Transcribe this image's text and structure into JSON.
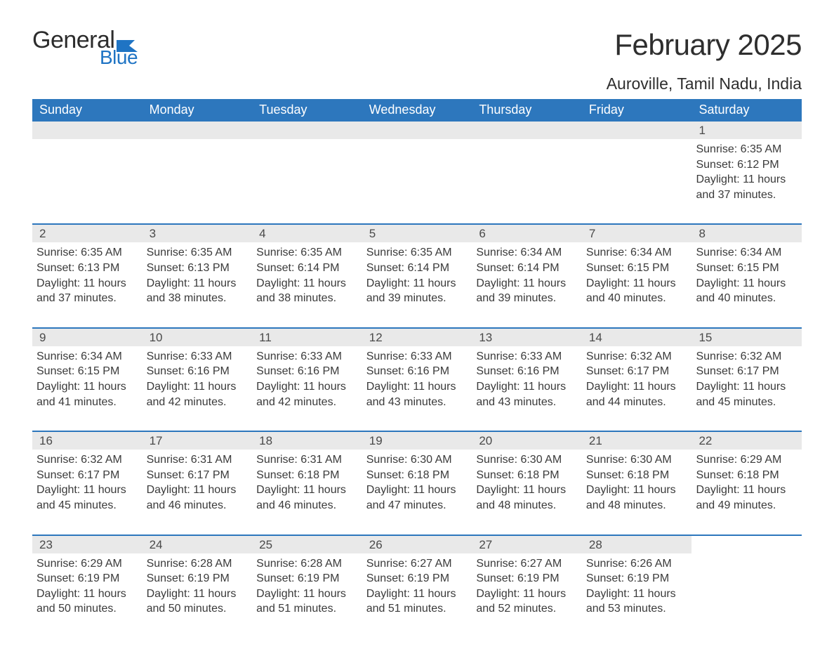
{
  "logo": {
    "text_general": "General",
    "text_blue": "Blue",
    "flag_color": "#1f74c4"
  },
  "title": "February 2025",
  "location": "Auroville, Tamil Nadu, India",
  "colors": {
    "header_bg": "#2d77bd",
    "header_text": "#ffffff",
    "daynum_band_bg": "#e9e9e9",
    "week_divider": "#2d77bd",
    "body_text": "#3a3a3a",
    "page_bg": "#ffffff"
  },
  "days_of_week": [
    "Sunday",
    "Monday",
    "Tuesday",
    "Wednesday",
    "Thursday",
    "Friday",
    "Saturday"
  ],
  "weeks": [
    [
      {
        "empty": true
      },
      {
        "empty": true
      },
      {
        "empty": true
      },
      {
        "empty": true
      },
      {
        "empty": true
      },
      {
        "empty": true
      },
      {
        "day": "1",
        "sunrise": "Sunrise: 6:35 AM",
        "sunset": "Sunset: 6:12 PM",
        "daylight": "Daylight: 11 hours and 37 minutes."
      }
    ],
    [
      {
        "day": "2",
        "sunrise": "Sunrise: 6:35 AM",
        "sunset": "Sunset: 6:13 PM",
        "daylight": "Daylight: 11 hours and 37 minutes."
      },
      {
        "day": "3",
        "sunrise": "Sunrise: 6:35 AM",
        "sunset": "Sunset: 6:13 PM",
        "daylight": "Daylight: 11 hours and 38 minutes."
      },
      {
        "day": "4",
        "sunrise": "Sunrise: 6:35 AM",
        "sunset": "Sunset: 6:14 PM",
        "daylight": "Daylight: 11 hours and 38 minutes."
      },
      {
        "day": "5",
        "sunrise": "Sunrise: 6:35 AM",
        "sunset": "Sunset: 6:14 PM",
        "daylight": "Daylight: 11 hours and 39 minutes."
      },
      {
        "day": "6",
        "sunrise": "Sunrise: 6:34 AM",
        "sunset": "Sunset: 6:14 PM",
        "daylight": "Daylight: 11 hours and 39 minutes."
      },
      {
        "day": "7",
        "sunrise": "Sunrise: 6:34 AM",
        "sunset": "Sunset: 6:15 PM",
        "daylight": "Daylight: 11 hours and 40 minutes."
      },
      {
        "day": "8",
        "sunrise": "Sunrise: 6:34 AM",
        "sunset": "Sunset: 6:15 PM",
        "daylight": "Daylight: 11 hours and 40 minutes."
      }
    ],
    [
      {
        "day": "9",
        "sunrise": "Sunrise: 6:34 AM",
        "sunset": "Sunset: 6:15 PM",
        "daylight": "Daylight: 11 hours and 41 minutes."
      },
      {
        "day": "10",
        "sunrise": "Sunrise: 6:33 AM",
        "sunset": "Sunset: 6:16 PM",
        "daylight": "Daylight: 11 hours and 42 minutes."
      },
      {
        "day": "11",
        "sunrise": "Sunrise: 6:33 AM",
        "sunset": "Sunset: 6:16 PM",
        "daylight": "Daylight: 11 hours and 42 minutes."
      },
      {
        "day": "12",
        "sunrise": "Sunrise: 6:33 AM",
        "sunset": "Sunset: 6:16 PM",
        "daylight": "Daylight: 11 hours and 43 minutes."
      },
      {
        "day": "13",
        "sunrise": "Sunrise: 6:33 AM",
        "sunset": "Sunset: 6:16 PM",
        "daylight": "Daylight: 11 hours and 43 minutes."
      },
      {
        "day": "14",
        "sunrise": "Sunrise: 6:32 AM",
        "sunset": "Sunset: 6:17 PM",
        "daylight": "Daylight: 11 hours and 44 minutes."
      },
      {
        "day": "15",
        "sunrise": "Sunrise: 6:32 AM",
        "sunset": "Sunset: 6:17 PM",
        "daylight": "Daylight: 11 hours and 45 minutes."
      }
    ],
    [
      {
        "day": "16",
        "sunrise": "Sunrise: 6:32 AM",
        "sunset": "Sunset: 6:17 PM",
        "daylight": "Daylight: 11 hours and 45 minutes."
      },
      {
        "day": "17",
        "sunrise": "Sunrise: 6:31 AM",
        "sunset": "Sunset: 6:17 PM",
        "daylight": "Daylight: 11 hours and 46 minutes."
      },
      {
        "day": "18",
        "sunrise": "Sunrise: 6:31 AM",
        "sunset": "Sunset: 6:18 PM",
        "daylight": "Daylight: 11 hours and 46 minutes."
      },
      {
        "day": "19",
        "sunrise": "Sunrise: 6:30 AM",
        "sunset": "Sunset: 6:18 PM",
        "daylight": "Daylight: 11 hours and 47 minutes."
      },
      {
        "day": "20",
        "sunrise": "Sunrise: 6:30 AM",
        "sunset": "Sunset: 6:18 PM",
        "daylight": "Daylight: 11 hours and 48 minutes."
      },
      {
        "day": "21",
        "sunrise": "Sunrise: 6:30 AM",
        "sunset": "Sunset: 6:18 PM",
        "daylight": "Daylight: 11 hours and 48 minutes."
      },
      {
        "day": "22",
        "sunrise": "Sunrise: 6:29 AM",
        "sunset": "Sunset: 6:18 PM",
        "daylight": "Daylight: 11 hours and 49 minutes."
      }
    ],
    [
      {
        "day": "23",
        "sunrise": "Sunrise: 6:29 AM",
        "sunset": "Sunset: 6:19 PM",
        "daylight": "Daylight: 11 hours and 50 minutes."
      },
      {
        "day": "24",
        "sunrise": "Sunrise: 6:28 AM",
        "sunset": "Sunset: 6:19 PM",
        "daylight": "Daylight: 11 hours and 50 minutes."
      },
      {
        "day": "25",
        "sunrise": "Sunrise: 6:28 AM",
        "sunset": "Sunset: 6:19 PM",
        "daylight": "Daylight: 11 hours and 51 minutes."
      },
      {
        "day": "26",
        "sunrise": "Sunrise: 6:27 AM",
        "sunset": "Sunset: 6:19 PM",
        "daylight": "Daylight: 11 hours and 51 minutes."
      },
      {
        "day": "27",
        "sunrise": "Sunrise: 6:27 AM",
        "sunset": "Sunset: 6:19 PM",
        "daylight": "Daylight: 11 hours and 52 minutes."
      },
      {
        "day": "28",
        "sunrise": "Sunrise: 6:26 AM",
        "sunset": "Sunset: 6:19 PM",
        "daylight": "Daylight: 11 hours and 53 minutes."
      },
      {
        "empty": true,
        "noband": true
      }
    ]
  ]
}
